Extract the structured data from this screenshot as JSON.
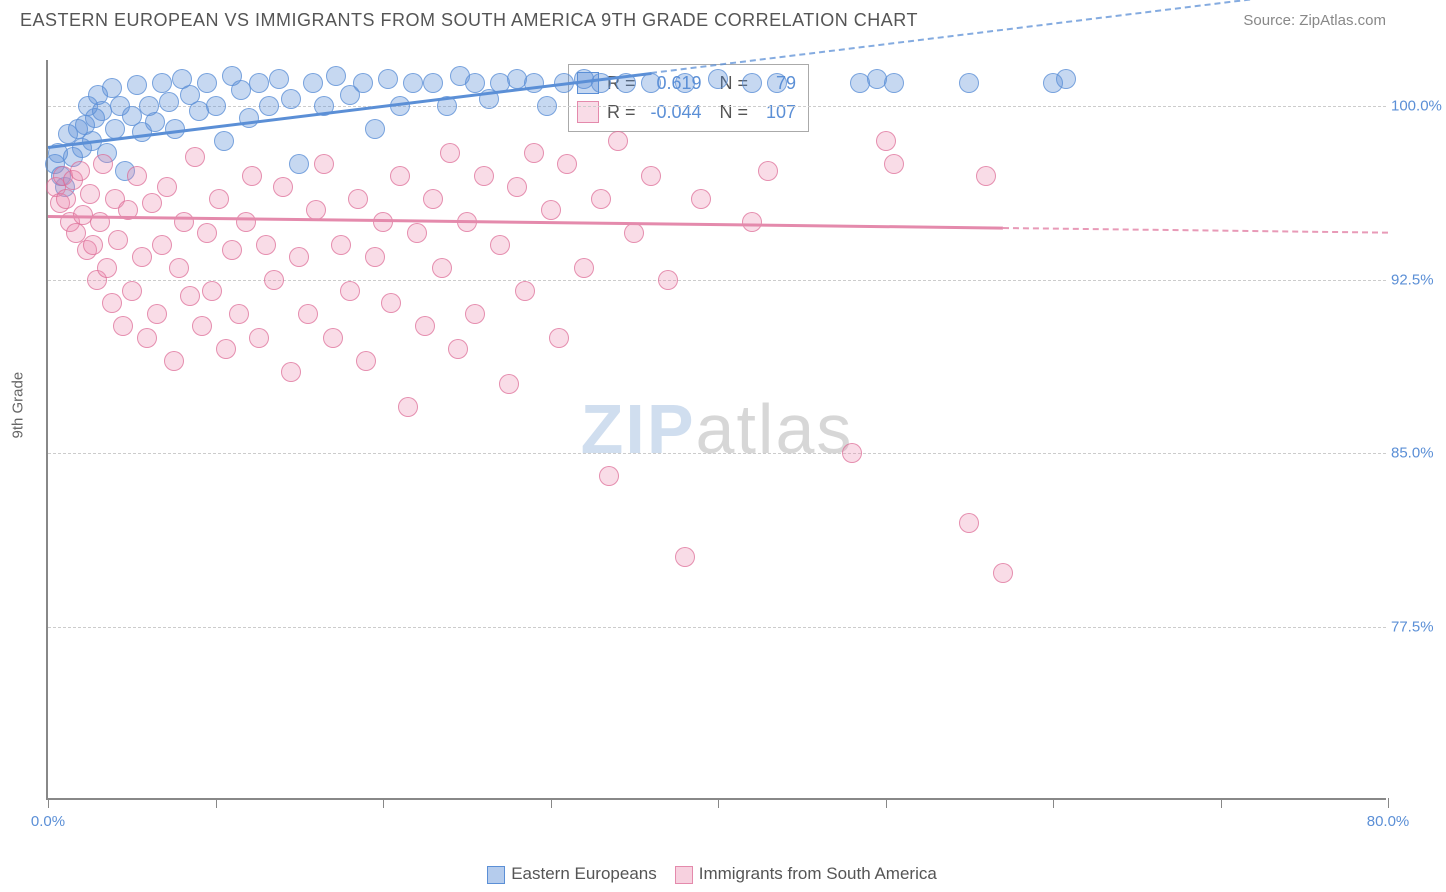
{
  "title": "EASTERN EUROPEAN VS IMMIGRANTS FROM SOUTH AMERICA 9TH GRADE CORRELATION CHART",
  "source_label": "Source: ",
  "source_value": "ZipAtlas.com",
  "ylabel": "9th Grade",
  "watermark_part1": "ZIP",
  "watermark_part2": "atlas",
  "chart": {
    "type": "scatter",
    "xlim": [
      0,
      80
    ],
    "ylim": [
      70,
      102
    ],
    "x_ticks": [
      0,
      10,
      20,
      30,
      40,
      50,
      60,
      70,
      80
    ],
    "x_tick_labels_shown": {
      "0": "0.0%",
      "80": "80.0%"
    },
    "y_ticks": [
      77.5,
      85.0,
      92.5,
      100.0
    ],
    "y_tick_labels": [
      "77.5%",
      "85.0%",
      "92.5%",
      "100.0%"
    ],
    "grid_color": "#cccccc",
    "axis_color": "#888888",
    "background_color": "#ffffff",
    "marker_radius": 10,
    "marker_opacity": 0.4,
    "marker_stroke_opacity": 0.7,
    "marker_stroke_width": 1.5
  },
  "series": [
    {
      "id": "eastern_europeans",
      "label": "Eastern Europeans",
      "color": "#5b8fd6",
      "fill": "rgba(91,143,214,0.35)",
      "stroke": "rgba(91,143,214,0.75)",
      "R": "0.619",
      "N": "79",
      "trend": {
        "x1": 0,
        "y1": 98.3,
        "x2": 36,
        "y2": 101.5,
        "dash_to_x": 80
      },
      "points": [
        [
          0.4,
          97.5
        ],
        [
          0.6,
          98.0
        ],
        [
          0.8,
          97.0
        ],
        [
          1.0,
          96.5
        ],
        [
          1.2,
          98.8
        ],
        [
          1.5,
          97.8
        ],
        [
          1.8,
          99.0
        ],
        [
          2.0,
          98.2
        ],
        [
          2.2,
          99.2
        ],
        [
          2.4,
          100.0
        ],
        [
          2.6,
          98.5
        ],
        [
          2.8,
          99.5
        ],
        [
          3.0,
          100.5
        ],
        [
          3.2,
          99.8
        ],
        [
          3.5,
          98.0
        ],
        [
          3.8,
          100.8
        ],
        [
          4.0,
          99.0
        ],
        [
          4.3,
          100.0
        ],
        [
          4.6,
          97.2
        ],
        [
          5.0,
          99.6
        ],
        [
          5.3,
          100.9
        ],
        [
          5.6,
          98.9
        ],
        [
          6.0,
          100.0
        ],
        [
          6.4,
          99.3
        ],
        [
          6.8,
          101.0
        ],
        [
          7.2,
          100.2
        ],
        [
          7.6,
          99.0
        ],
        [
          8.0,
          101.2
        ],
        [
          8.5,
          100.5
        ],
        [
          9.0,
          99.8
        ],
        [
          9.5,
          101.0
        ],
        [
          10.0,
          100.0
        ],
        [
          10.5,
          98.5
        ],
        [
          11.0,
          101.3
        ],
        [
          11.5,
          100.7
        ],
        [
          12.0,
          99.5
        ],
        [
          12.6,
          101.0
        ],
        [
          13.2,
          100.0
        ],
        [
          13.8,
          101.2
        ],
        [
          14.5,
          100.3
        ],
        [
          15.0,
          97.5
        ],
        [
          15.8,
          101.0
        ],
        [
          16.5,
          100.0
        ],
        [
          17.2,
          101.3
        ],
        [
          18.0,
          100.5
        ],
        [
          18.8,
          101.0
        ],
        [
          19.5,
          99.0
        ],
        [
          20.3,
          101.2
        ],
        [
          21.0,
          100.0
        ],
        [
          21.8,
          101.0
        ],
        [
          23.0,
          101.0
        ],
        [
          23.8,
          100.0
        ],
        [
          24.6,
          101.3
        ],
        [
          25.5,
          101.0
        ],
        [
          26.3,
          100.3
        ],
        [
          27.0,
          101.0
        ],
        [
          28.0,
          101.2
        ],
        [
          29.0,
          101.0
        ],
        [
          29.8,
          100.0
        ],
        [
          30.8,
          101.0
        ],
        [
          32.0,
          101.2
        ],
        [
          33.0,
          101.0
        ],
        [
          34.5,
          101.0
        ],
        [
          36.0,
          101.0
        ],
        [
          38.0,
          101.0
        ],
        [
          40.0,
          101.2
        ],
        [
          42.0,
          101.0
        ],
        [
          43.5,
          101.0
        ],
        [
          48.5,
          101.0
        ],
        [
          49.5,
          101.2
        ],
        [
          50.5,
          101.0
        ],
        [
          55.0,
          101.0
        ],
        [
          60.0,
          101.0
        ],
        [
          60.8,
          101.2
        ]
      ]
    },
    {
      "id": "immigrants_sa",
      "label": "Immigrants from South America",
      "color": "#e48aac",
      "fill": "rgba(235,140,175,0.30)",
      "stroke": "rgba(220,100,145,0.65)",
      "R": "-0.044",
      "N": "107",
      "trend": {
        "x1": 0,
        "y1": 95.3,
        "x2": 57,
        "y2": 94.8,
        "dash_to_x": 80
      },
      "points": [
        [
          0.5,
          96.5
        ],
        [
          0.7,
          95.8
        ],
        [
          0.9,
          97.0
        ],
        [
          1.1,
          96.0
        ],
        [
          1.3,
          95.0
        ],
        [
          1.5,
          96.8
        ],
        [
          1.7,
          94.5
        ],
        [
          1.9,
          97.2
        ],
        [
          2.1,
          95.3
        ],
        [
          2.3,
          93.8
        ],
        [
          2.5,
          96.2
        ],
        [
          2.7,
          94.0
        ],
        [
          2.9,
          92.5
        ],
        [
          3.1,
          95.0
        ],
        [
          3.3,
          97.5
        ],
        [
          3.5,
          93.0
        ],
        [
          3.8,
          91.5
        ],
        [
          4.0,
          96.0
        ],
        [
          4.2,
          94.2
        ],
        [
          4.5,
          90.5
        ],
        [
          4.8,
          95.5
        ],
        [
          5.0,
          92.0
        ],
        [
          5.3,
          97.0
        ],
        [
          5.6,
          93.5
        ],
        [
          5.9,
          90.0
        ],
        [
          6.2,
          95.8
        ],
        [
          6.5,
          91.0
        ],
        [
          6.8,
          94.0
        ],
        [
          7.1,
          96.5
        ],
        [
          7.5,
          89.0
        ],
        [
          7.8,
          93.0
        ],
        [
          8.1,
          95.0
        ],
        [
          8.5,
          91.8
        ],
        [
          8.8,
          97.8
        ],
        [
          9.2,
          90.5
        ],
        [
          9.5,
          94.5
        ],
        [
          9.8,
          92.0
        ],
        [
          10.2,
          96.0
        ],
        [
          10.6,
          89.5
        ],
        [
          11.0,
          93.8
        ],
        [
          11.4,
          91.0
        ],
        [
          11.8,
          95.0
        ],
        [
          12.2,
          97.0
        ],
        [
          12.6,
          90.0
        ],
        [
          13.0,
          94.0
        ],
        [
          13.5,
          92.5
        ],
        [
          14.0,
          96.5
        ],
        [
          14.5,
          88.5
        ],
        [
          15.0,
          93.5
        ],
        [
          15.5,
          91.0
        ],
        [
          16.0,
          95.5
        ],
        [
          16.5,
          97.5
        ],
        [
          17.0,
          90.0
        ],
        [
          17.5,
          94.0
        ],
        [
          18.0,
          92.0
        ],
        [
          18.5,
          96.0
        ],
        [
          19.0,
          89.0
        ],
        [
          19.5,
          93.5
        ],
        [
          20.0,
          95.0
        ],
        [
          20.5,
          91.5
        ],
        [
          21.0,
          97.0
        ],
        [
          21.5,
          87.0
        ],
        [
          22.0,
          94.5
        ],
        [
          22.5,
          90.5
        ],
        [
          23.0,
          96.0
        ],
        [
          23.5,
          93.0
        ],
        [
          24.0,
          98.0
        ],
        [
          24.5,
          89.5
        ],
        [
          25.0,
          95.0
        ],
        [
          25.5,
          91.0
        ],
        [
          26.0,
          97.0
        ],
        [
          27.0,
          94.0
        ],
        [
          27.5,
          88.0
        ],
        [
          28.0,
          96.5
        ],
        [
          28.5,
          92.0
        ],
        [
          29.0,
          98.0
        ],
        [
          30.0,
          95.5
        ],
        [
          30.5,
          90.0
        ],
        [
          31.0,
          97.5
        ],
        [
          32.0,
          93.0
        ],
        [
          33.0,
          96.0
        ],
        [
          33.5,
          84.0
        ],
        [
          34.0,
          98.5
        ],
        [
          35.0,
          94.5
        ],
        [
          36.0,
          97.0
        ],
        [
          37.0,
          92.5
        ],
        [
          38.0,
          80.5
        ],
        [
          39.0,
          96.0
        ],
        [
          42.0,
          95.0
        ],
        [
          43.0,
          97.2
        ],
        [
          48.0,
          85.0
        ],
        [
          50.0,
          98.5
        ],
        [
          50.5,
          97.5
        ],
        [
          55.0,
          82.0
        ],
        [
          56.0,
          97.0
        ],
        [
          57.0,
          79.8
        ]
      ]
    }
  ],
  "legend_items": [
    {
      "label": "Eastern Europeans",
      "fill": "rgba(91,143,214,0.45)",
      "stroke": "#5b8fd6"
    },
    {
      "label": "Immigrants from South America",
      "fill": "rgba(235,140,175,0.40)",
      "stroke": "#e48aac"
    }
  ],
  "stats_labels": {
    "R": "R =",
    "N": "N ="
  }
}
